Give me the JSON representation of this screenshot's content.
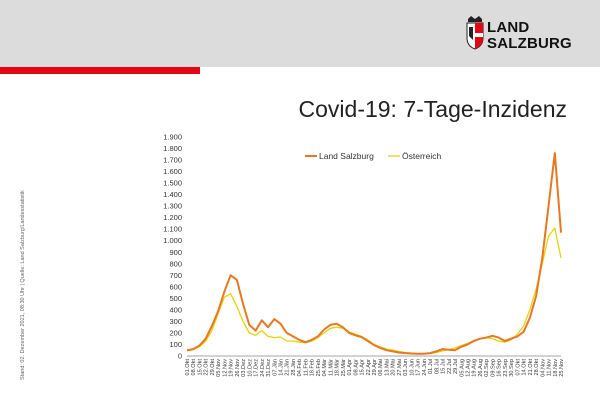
{
  "header": {
    "logo_line1": "LAND",
    "logo_line2": "SALZBURG",
    "title": "Covid-19: 7-Tage-Inzidenz",
    "source_note": "Stand: 02. Dezember 2021, 08:30 Uhr | Quelle: Land Salzburg/Landesstatistik"
  },
  "colors": {
    "band": "#dcdcdc",
    "accent_red": "#e30613",
    "salzburg": "#e87722",
    "oesterreich": "#e6d20c"
  },
  "chart_data": {
    "type": "line",
    "title": "",
    "xlabel": "",
    "ylabel": "",
    "ylim": [
      0,
      1900
    ],
    "yticks": [
      0,
      100,
      200,
      300,
      400,
      500,
      600,
      700,
      800,
      900,
      1000,
      1100,
      1200,
      1300,
      1400,
      1500,
      1600,
      1700,
      1800,
      1900
    ],
    "ytick_labels": [
      "0",
      "100",
      "200",
      "300",
      "400",
      "500",
      "600",
      "700",
      "800",
      "900",
      "1.000",
      "1.100",
      "1.200",
      "1.300",
      "1.400",
      "1.500",
      "1.600",
      "1.700",
      "1.800",
      "1.900"
    ],
    "x_tick_labels": [
      "01.Okt",
      "08.Okt",
      "15.Okt",
      "22.Okt",
      "29.Okt",
      "05.Nov",
      "12.Nov",
      "19.Nov",
      "26.Nov",
      "03.Dez",
      "10.Dez",
      "17.Dez",
      "24.Dez",
      "31.Dez",
      "07.Jän",
      "14.Jän",
      "21.Jän",
      "28.Jän",
      "04.Feb",
      "11.Feb",
      "18.Feb",
      "25.Feb",
      "04.Mär",
      "11.Mär",
      "18.Mär",
      "25.Mär",
      "01.Apr",
      "08.Apr",
      "15.Apr",
      "22.Apr",
      "29.Apr",
      "06.Mai",
      "13.Mai",
      "20.Mai",
      "27.Mai",
      "03.Jun",
      "10.Jun",
      "17.Jun",
      "24.Jun",
      "01.Jul",
      "08.Jul",
      "15.Jul",
      "22.Jul",
      "29.Jul",
      "05.Aug",
      "12.Aug",
      "19.Aug",
      "26.Aug",
      "02.Sep",
      "09.Sep",
      "16.Sep",
      "23.Sep",
      "30.Sep",
      "07.Okt",
      "14.Okt",
      "21.Okt",
      "28.Okt",
      "04.Nov",
      "11.Nov",
      "18.Nov",
      "25.Nov"
    ],
    "grid": false,
    "legend_position": "top-center",
    "series": [
      {
        "name": "Land Salzburg",
        "color": "#e87722",
        "values": [
          50,
          60,
          90,
          150,
          260,
          390,
          560,
          700,
          660,
          450,
          270,
          220,
          310,
          250,
          320,
          280,
          200,
          170,
          140,
          120,
          140,
          170,
          230,
          270,
          280,
          250,
          200,
          180,
          165,
          130,
          95,
          70,
          50,
          40,
          30,
          25,
          22,
          20,
          20,
          25,
          40,
          60,
          55,
          50,
          80,
          100,
          130,
          150,
          160,
          175,
          160,
          130,
          150,
          170,
          210,
          330,
          520,
          850,
          1300,
          1760,
          1070
        ]
      },
      {
        "name": "Österreich",
        "color": "#e6d20c",
        "values": [
          45,
          55,
          80,
          130,
          220,
          370,
          510,
          540,
          430,
          300,
          200,
          180,
          220,
          170,
          160,
          165,
          130,
          130,
          120,
          115,
          130,
          160,
          200,
          240,
          250,
          240,
          210,
          190,
          170,
          140,
          100,
          80,
          60,
          50,
          40,
          30,
          25,
          20,
          20,
          22,
          30,
          45,
          55,
          70,
          90,
          110,
          130,
          150,
          160,
          150,
          130,
          120,
          140,
          190,
          260,
          400,
          580,
          800,
          1040,
          1110,
          850
        ]
      }
    ]
  }
}
